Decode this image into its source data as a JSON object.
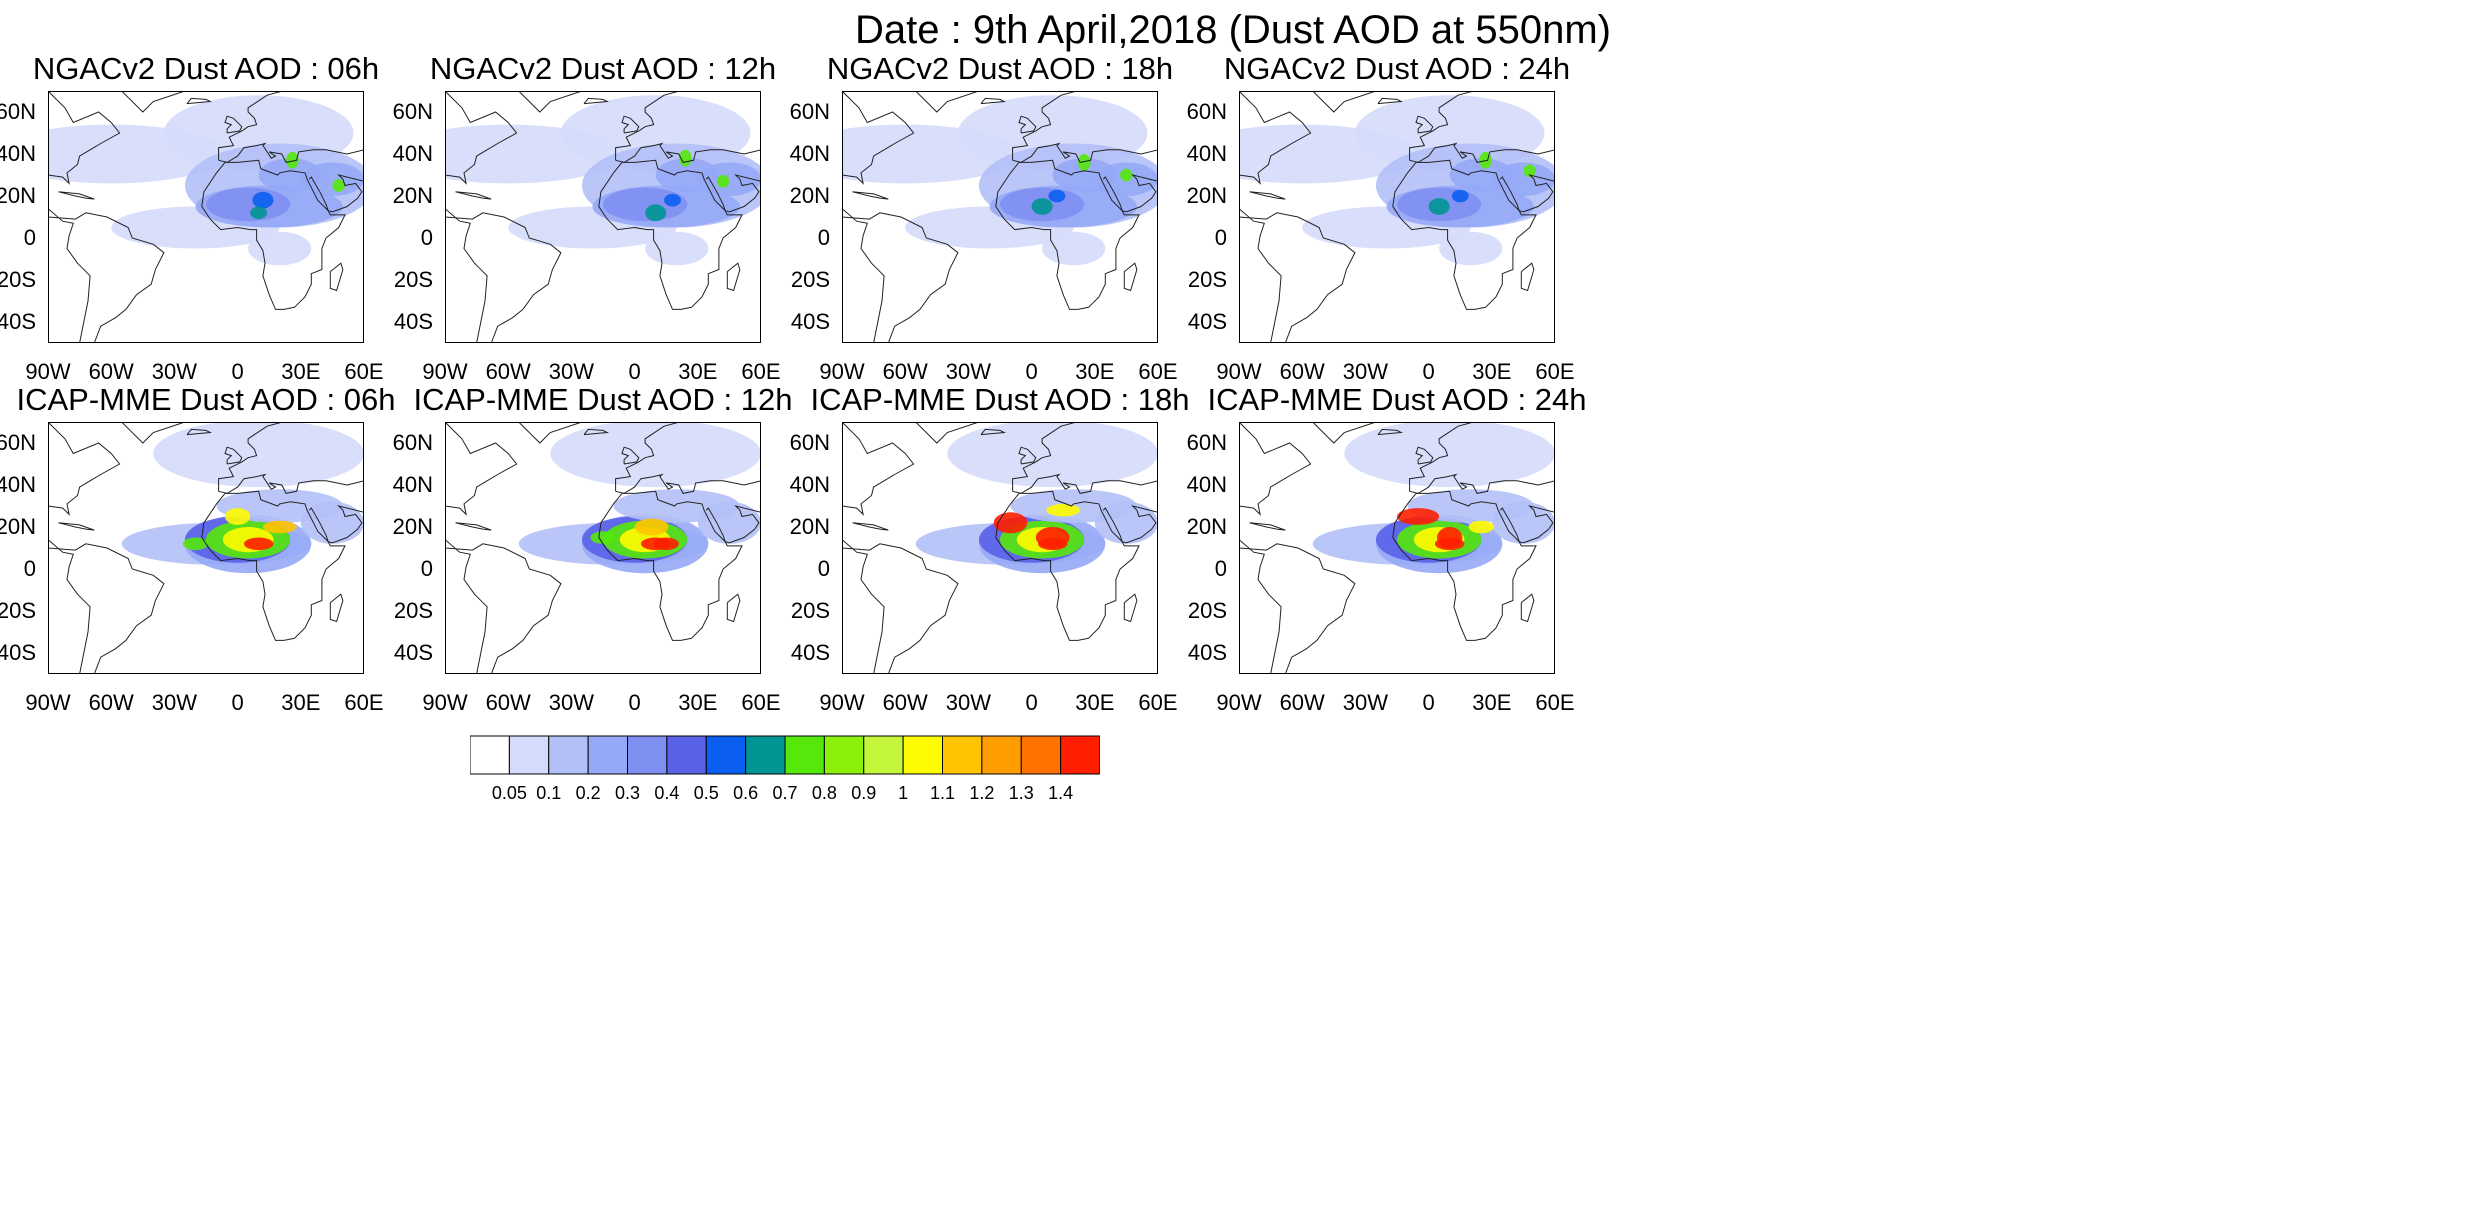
{
  "title": "Date : 9th April,2018 (Dust AOD at 550nm)",
  "lon_ticks": [
    "90W",
    "60W",
    "30W",
    "0",
    "30E",
    "60E"
  ],
  "lat_ticks": [
    "60N",
    "40N",
    "20N",
    "0",
    "20S",
    "40S"
  ],
  "rows": [
    {
      "model": "NGACv2",
      "panels": [
        {
          "title": "NGACv2 Dust AOD : 06h",
          "lead_hours": 6
        },
        {
          "title": "NGACv2 Dust AOD : 12h",
          "lead_hours": 12
        },
        {
          "title": "NGACv2 Dust AOD : 18h",
          "lead_hours": 18
        },
        {
          "title": "NGACv2 Dust AOD : 24h",
          "lead_hours": 24
        }
      ]
    },
    {
      "model": "ICAP-MME",
      "panels": [
        {
          "title": "ICAP-MME Dust AOD : 06h",
          "lead_hours": 6
        },
        {
          "title": "ICAP-MME Dust AOD : 12h",
          "lead_hours": 12
        },
        {
          "title": "ICAP-MME Dust AOD : 18h",
          "lead_hours": 18
        },
        {
          "title": "ICAP-MME Dust AOD : 24h",
          "lead_hours": 24
        }
      ]
    }
  ],
  "colorbar": {
    "levels": [
      "0.05",
      "0.1",
      "0.2",
      "0.3",
      "0.4",
      "0.5",
      "0.6",
      "0.7",
      "0.8",
      "0.9",
      "1",
      "1.1",
      "1.2",
      "1.3",
      "1.4"
    ],
    "colors": [
      "#ffffff",
      "#d5dcfb",
      "#b3c0f7",
      "#96a9f6",
      "#7f8ff1",
      "#5a62e8",
      "#0b5ff0",
      "#009592",
      "#55e80a",
      "#8cf00a",
      "#c3f53a",
      "#fffb00",
      "#ffc300",
      "#ff9d00",
      "#ff7200",
      "#ff1e00"
    ]
  },
  "map_extent": {
    "lon_min": -90,
    "lon_max": 60,
    "lat_min": -50,
    "lat_max": 70
  }
}
